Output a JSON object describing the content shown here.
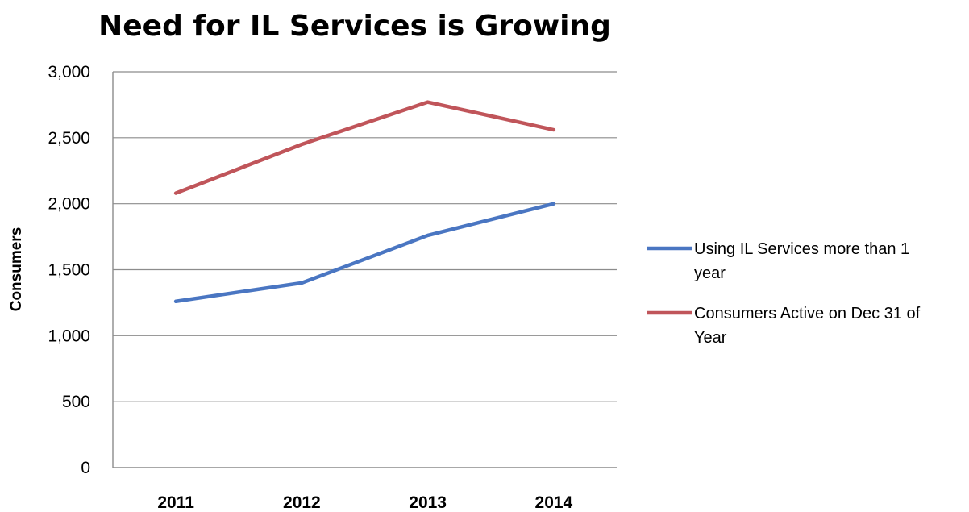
{
  "chart_data": {
    "type": "line",
    "title": "Need for IL Services is Growing",
    "ylabel": "Consumers",
    "xlabel": "",
    "categories": [
      "2011",
      "2012",
      "2013",
      "2014"
    ],
    "ylim": [
      0,
      3000
    ],
    "yticks": [
      0,
      500,
      1000,
      1500,
      2000,
      2500,
      3000
    ],
    "ytick_labels": [
      "0",
      "500",
      "1,000",
      "1,500",
      "2,000",
      "2,500",
      "3,000"
    ],
    "grid": true,
    "legend_position": "right",
    "series": [
      {
        "name": "Using IL Services more than 1 year",
        "name_lines": [
          "Using IL Services more than 1",
          "year"
        ],
        "color": "#4a76c2",
        "values": [
          1260,
          1400,
          1760,
          2000
        ]
      },
      {
        "name": "Consumers Active on Dec 31 of Year",
        "name_lines": [
          "Consumers Active on Dec 31 of",
          "Year"
        ],
        "color": "#c0555a",
        "values": [
          2080,
          2450,
          2770,
          2560
        ]
      }
    ]
  }
}
